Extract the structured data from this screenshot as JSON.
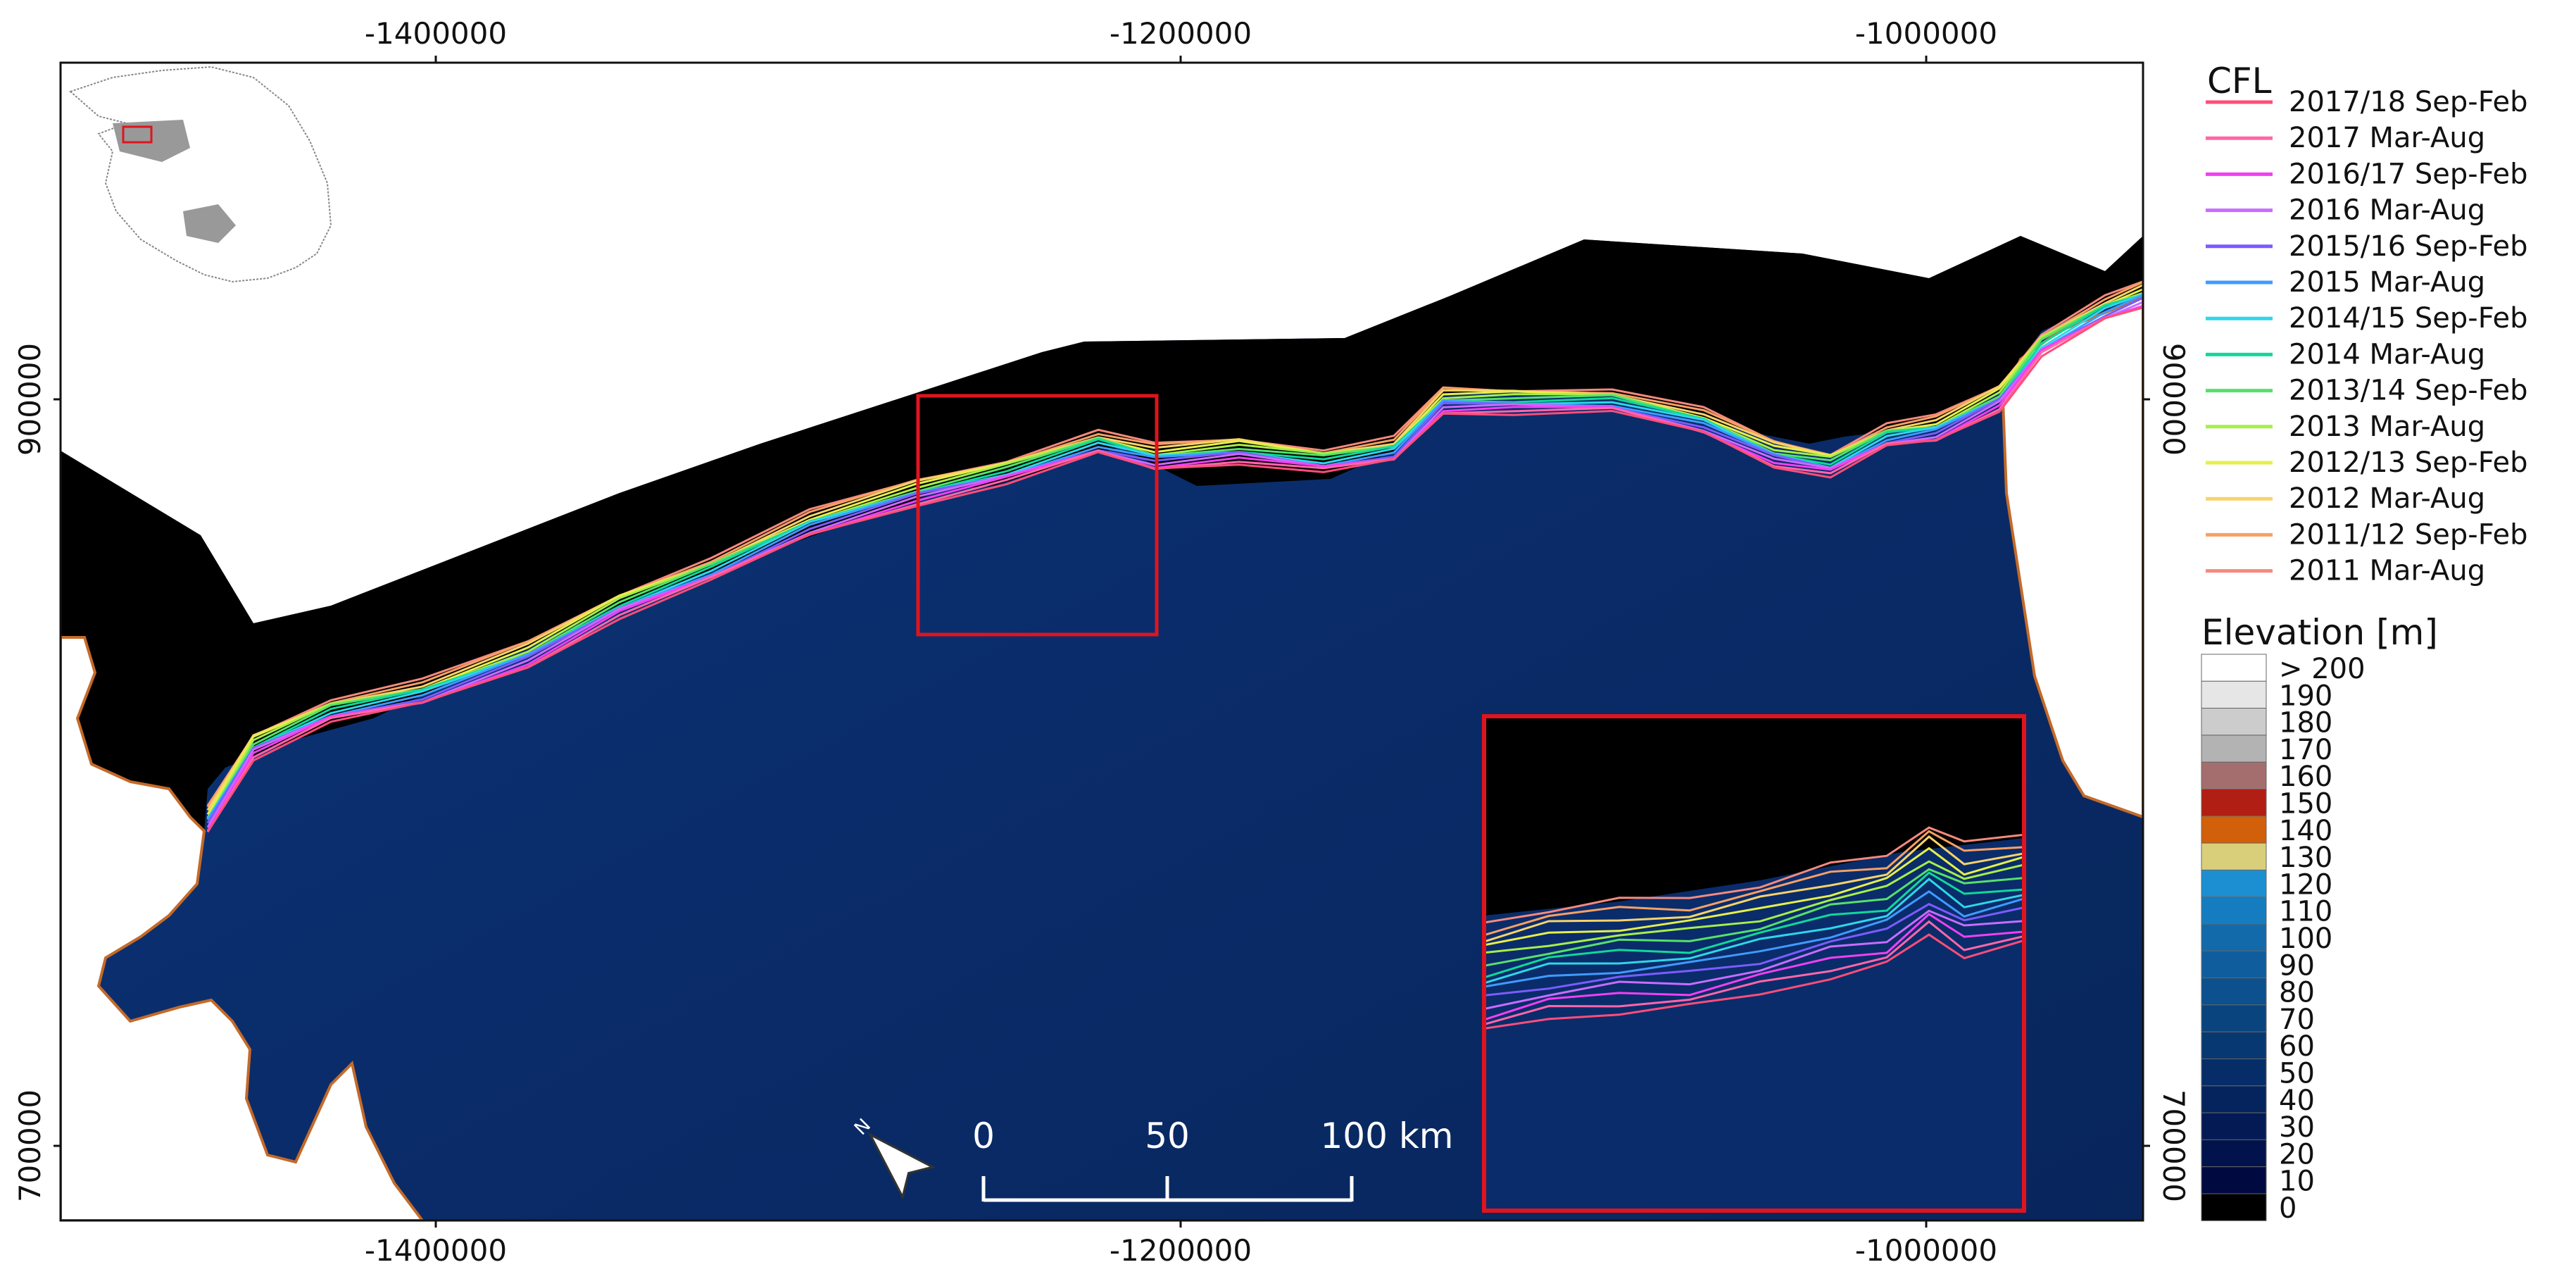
{
  "axes": {
    "x_ticks": [
      "-1400000",
      "-1200000",
      "-1000000"
    ],
    "y_ticks": [
      "900000",
      "700000"
    ]
  },
  "cfl_legend": {
    "title": "CFL",
    "entries": [
      {
        "label": "2017/18 Sep-Feb",
        "color": "#ff4d7a"
      },
      {
        "label": "2017 Mar-Aug",
        "color": "#ff66aa"
      },
      {
        "label": "2016/17 Sep-Feb",
        "color": "#f23ff2"
      },
      {
        "label": "2016 Mar-Aug",
        "color": "#c86cff"
      },
      {
        "label": "2015/16 Sep-Feb",
        "color": "#7b5cff"
      },
      {
        "label": "2015 Mar-Aug",
        "color": "#3f9bff"
      },
      {
        "label": "2014/15 Sep-Feb",
        "color": "#2fd6e8"
      },
      {
        "label": "2014 Mar-Aug",
        "color": "#10d89a"
      },
      {
        "label": "2013/14 Sep-Feb",
        "color": "#56e06a"
      },
      {
        "label": "2013 Mar-Aug",
        "color": "#a6ee4a"
      },
      {
        "label": "2012/13 Sep-Feb",
        "color": "#e6ef4a"
      },
      {
        "label": "2012 Mar-Aug",
        "color": "#f7d36a"
      },
      {
        "label": "2011/12 Sep-Feb",
        "color": "#f9a065"
      },
      {
        "label": "2011 Mar-Aug",
        "color": "#f58a7d"
      }
    ]
  },
  "elevation_legend": {
    "title": "Elevation [m]",
    "classes": [
      {
        "label": "> 200",
        "color": "#ffffff"
      },
      {
        "label": "190",
        "color": "#e6e6e6"
      },
      {
        "label": "180",
        "color": "#cccccc"
      },
      {
        "label": "170",
        "color": "#b3b3b3"
      },
      {
        "label": "160",
        "color": "#a46e6e"
      },
      {
        "label": "150",
        "color": "#b01e14"
      },
      {
        "label": "140",
        "color": "#d25f0a"
      },
      {
        "label": "130",
        "color": "#d9cf7a"
      },
      {
        "label": "120",
        "color": "#1b8fd2"
      },
      {
        "label": "110",
        "color": "#157cc0"
      },
      {
        "label": "100",
        "color": "#126aab"
      },
      {
        "label": "90",
        "color": "#0f5d9c"
      },
      {
        "label": "80",
        "color": "#0c508d"
      },
      {
        "label": "70",
        "color": "#0a447f"
      },
      {
        "label": "60",
        "color": "#083872"
      },
      {
        "label": "50",
        "color": "#062d68"
      },
      {
        "label": "40",
        "color": "#05245e"
      },
      {
        "label": "30",
        "color": "#031a55"
      },
      {
        "label": "20",
        "color": "#02124c"
      },
      {
        "label": "10",
        "color": "#010a40"
      },
      {
        "label": "0",
        "color": "#000000"
      }
    ]
  },
  "scale_bar": {
    "labels": [
      "0",
      "50",
      "100 km"
    ]
  },
  "north_arrow": {
    "label": "N",
    "icon": "north-arrow-icon"
  },
  "colors": {
    "ocean": "#0a2a66",
    "land": "#ffffff",
    "nodata": "#000000",
    "frame": "#e0141e"
  }
}
